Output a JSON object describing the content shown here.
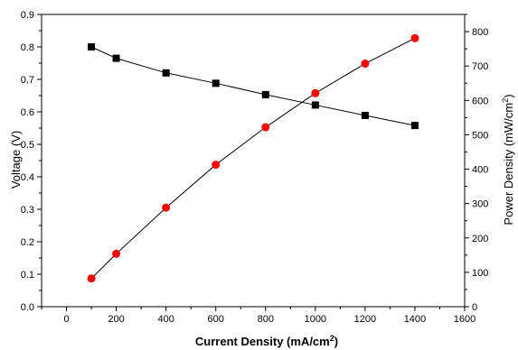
{
  "chart_data": {
    "type": "scatter",
    "x": [
      100,
      200,
      400,
      600,
      800,
      1000,
      1200,
      1400
    ],
    "xlim": [
      -100,
      1600
    ],
    "xticks": [
      0,
      200,
      400,
      600,
      800,
      1000,
      1200,
      1400,
      1600
    ],
    "xlabel": "Current Density (mA/cm",
    "xlabel_sup": "2",
    "xlabel_end": ")",
    "y_left": {
      "label": "Voltage (V)",
      "lim": [
        0.0,
        0.9
      ],
      "ticks": [
        "0.0",
        "0.1",
        "0.2",
        "0.3",
        "0.4",
        "0.5",
        "0.6",
        "0.7",
        "0.8",
        "0.9"
      ]
    },
    "y_right": {
      "label": "Power Density (mW/cm",
      "label_sup": "2",
      "label_end": ")",
      "lim": [
        0,
        850
      ],
      "ticks": [
        "0",
        "100",
        "200",
        "300",
        "400",
        "500",
        "600",
        "700",
        "800"
      ]
    },
    "series": [
      {
        "axis": "left",
        "marker": "square",
        "color": "#000000",
        "values": [
          0.8,
          0.765,
          0.72,
          0.688,
          0.653,
          0.621,
          0.589,
          0.558
        ]
      },
      {
        "axis": "right",
        "marker": "circle",
        "color": "#ff0000",
        "values": [
          82,
          154,
          288,
          413,
          522,
          621,
          707,
          781
        ]
      }
    ],
    "grid": false,
    "legend": "none"
  }
}
